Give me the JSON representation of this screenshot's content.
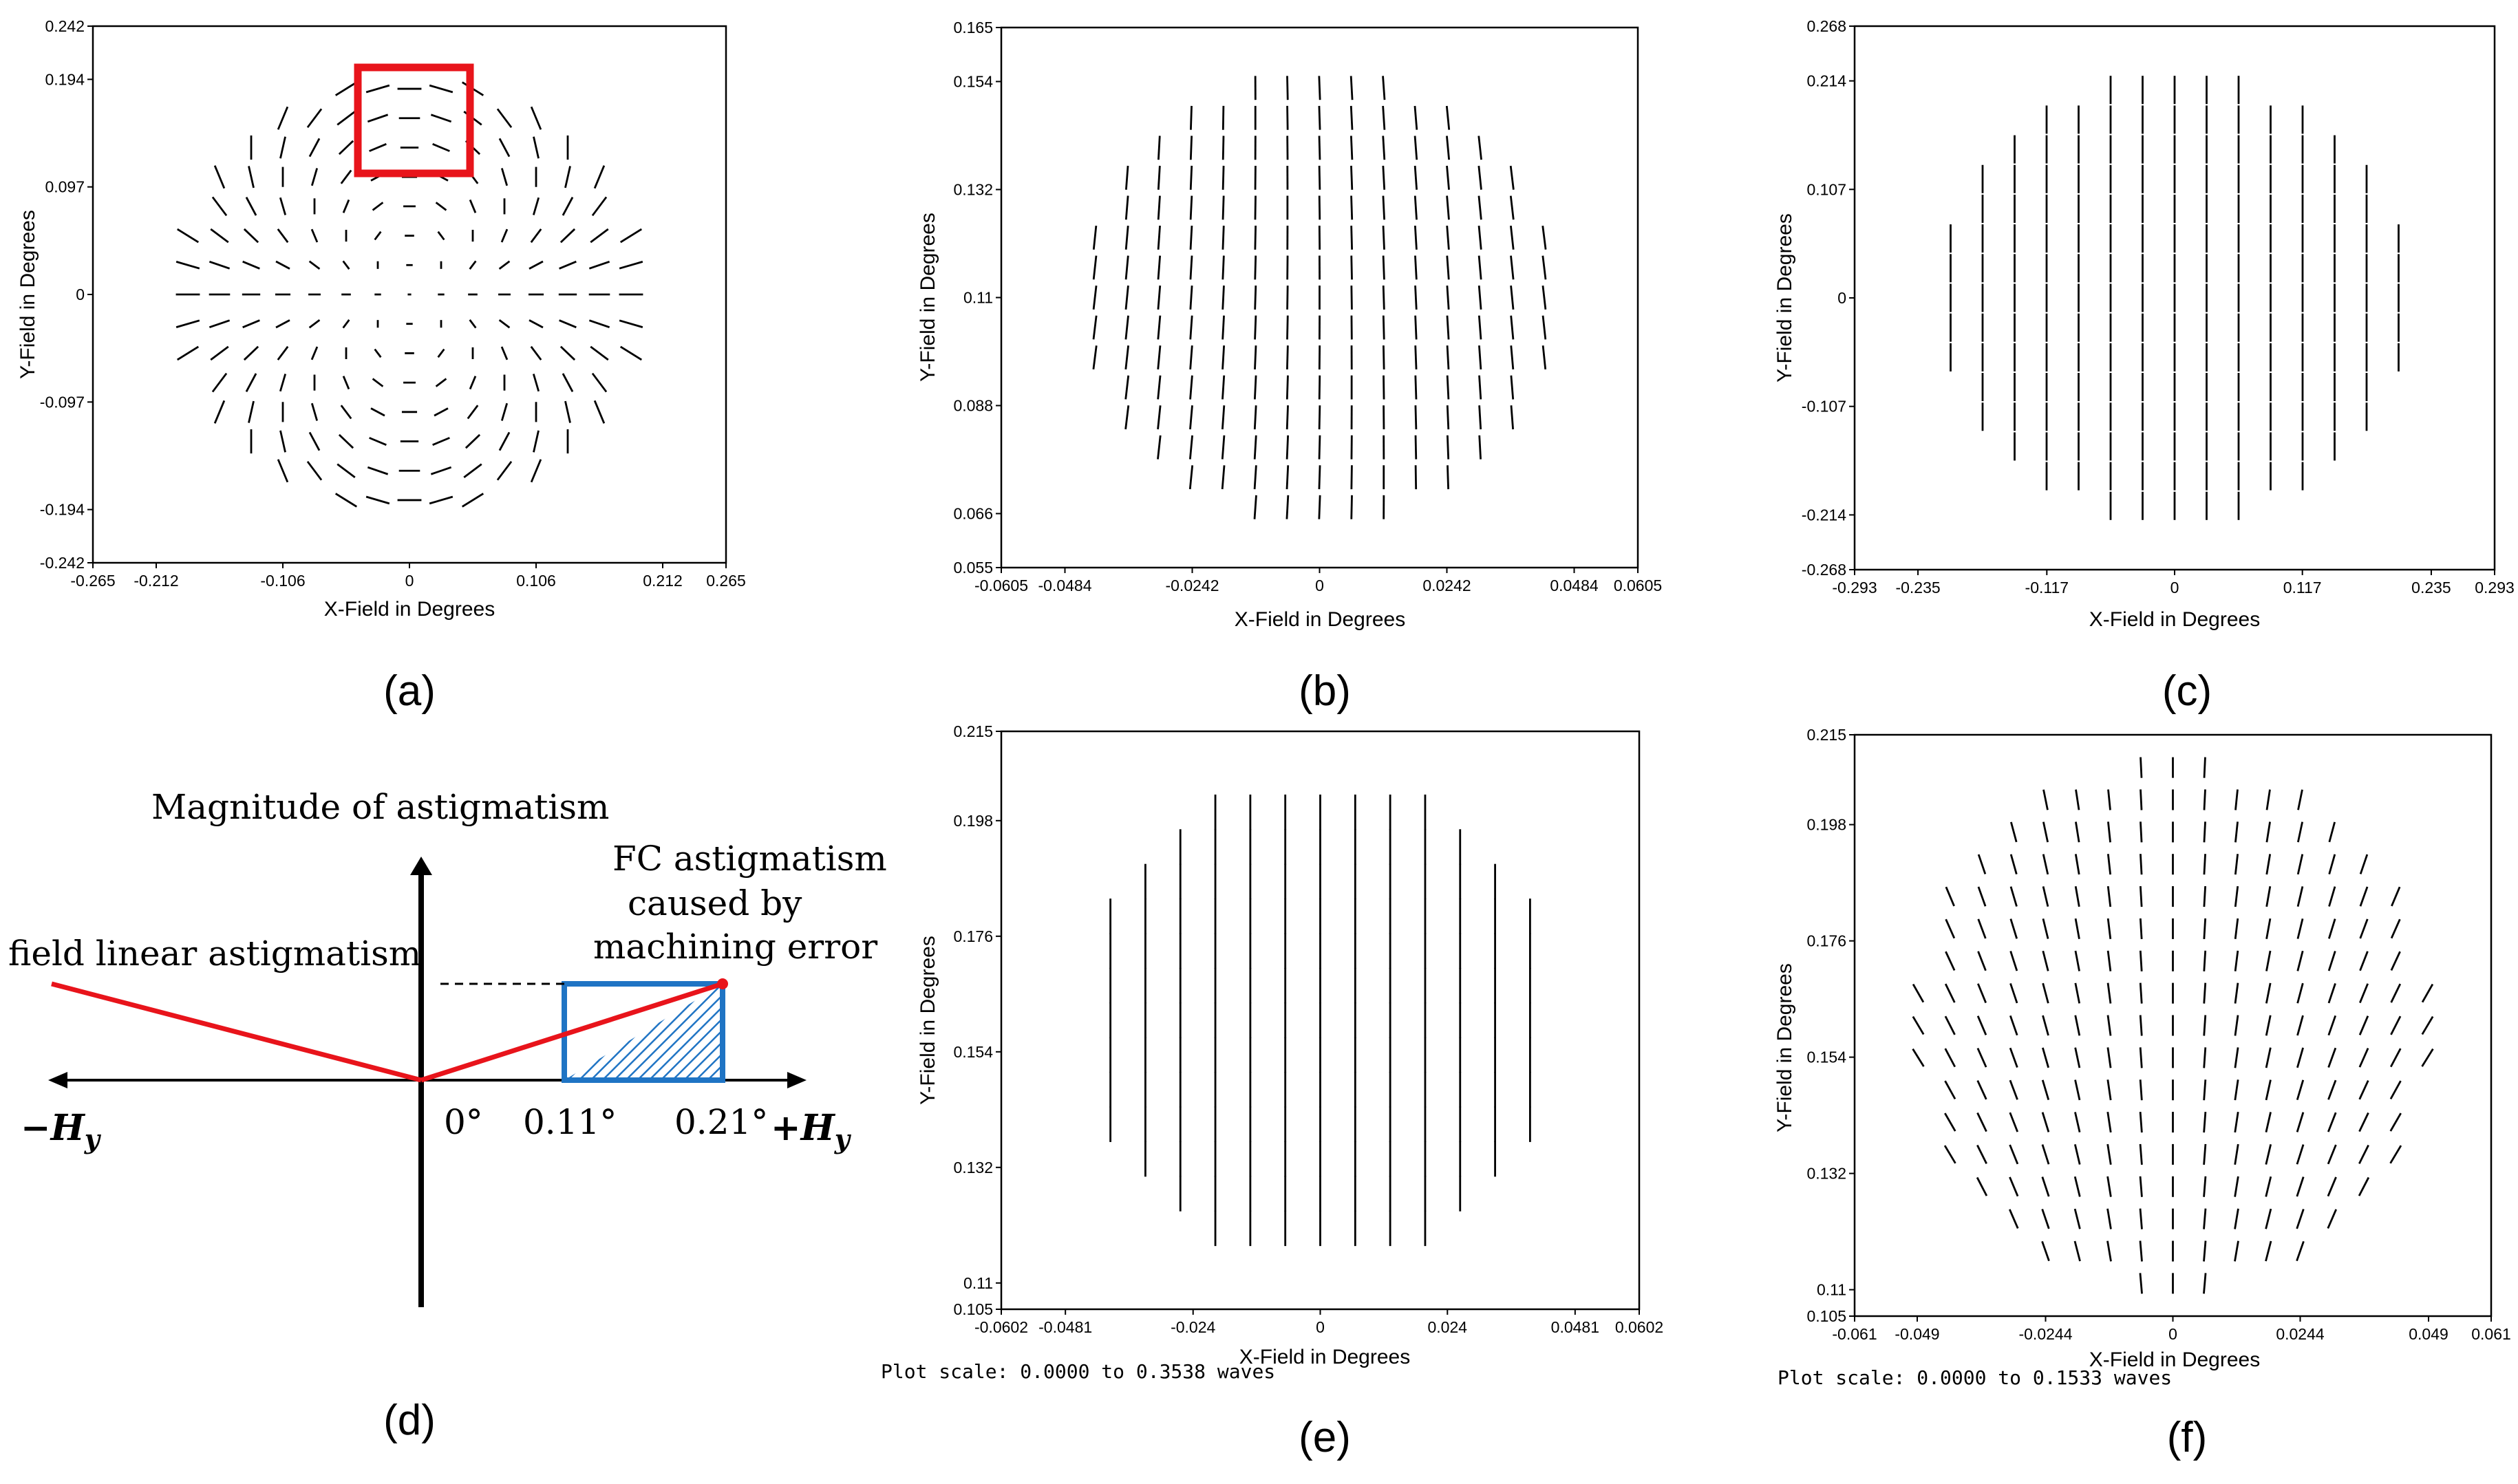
{
  "chart_data": [
    {
      "id": "a",
      "type": "scatter",
      "subtype": "field-map-line-segments",
      "panel_label": "(a)",
      "xlabel": "X-Field in Degrees",
      "ylabel": "Y-Field in Degrees",
      "xlim": [
        -0.265,
        0.265
      ],
      "ylim": [
        -0.242,
        0.242
      ],
      "xticks": [
        "-0.265",
        "-0.212",
        "-0.106",
        "0",
        "0.106",
        "0.212",
        "0.265"
      ],
      "xtick_values": [
        -0.265,
        -0.212,
        -0.106,
        0,
        0.106,
        0.212,
        0.265
      ],
      "yticks": [
        "0.242",
        "0.194",
        "0.097",
        "0",
        "-0.097",
        "-0.194",
        "-0.242"
      ],
      "ytick_values": [
        0.242,
        0.194,
        0.097,
        0,
        -0.097,
        -0.194,
        -0.242
      ],
      "grid_step": 0.0265,
      "field_radius": 0.2,
      "pattern": "radial-astigmatism",
      "highlight_box": {
        "x_range": [
          -0.053,
          0.053
        ],
        "y_range": [
          0.1,
          0.2
        ],
        "color": "#e8141b"
      },
      "plot_scale": ""
    },
    {
      "id": "b",
      "type": "scatter",
      "subtype": "field-map-line-segments",
      "panel_label": "(b)",
      "xlabel": "X-Field in Degrees",
      "ylabel": "Y-Field in Degrees",
      "xlim": [
        -0.0605,
        0.0605
      ],
      "ylim": [
        0.055,
        0.165
      ],
      "xticks": [
        "-0.0605",
        "-0.0484",
        "-0.0242",
        "0",
        "0.0242",
        "0.0484",
        "0.0605"
      ],
      "xtick_values": [
        -0.0605,
        -0.0484,
        -0.0242,
        0,
        0.0242,
        0.0484,
        0.0605
      ],
      "yticks": [
        "0.165",
        "0.154",
        "0.132",
        "0.11",
        "0.088",
        "0.066",
        "0.055"
      ],
      "ytick_values": [
        0.165,
        0.154,
        0.132,
        0.11,
        0.088,
        0.066,
        0.055
      ],
      "grid_step": 0.0061,
      "field_radius": 0.045,
      "pattern": "near-vertical",
      "plot_scale": ""
    },
    {
      "id": "c",
      "type": "scatter",
      "subtype": "field-map-line-segments",
      "panel_label": "(c)",
      "xlabel": "X-Field in Degrees",
      "ylabel": "Y-Field in Degrees",
      "xlim": [
        -0.293,
        0.293
      ],
      "ylim": [
        -0.268,
        0.268
      ],
      "xticks": [
        "-0.293",
        "-0.235",
        "-0.117",
        "0",
        "0.117",
        "0.235",
        "0.293"
      ],
      "xtick_values": [
        -0.293,
        -0.235,
        -0.117,
        0,
        0.117,
        0.235,
        0.293
      ],
      "yticks": [
        "0.268",
        "0.214",
        "0.107",
        "0",
        "-0.107",
        "-0.214",
        "-0.268"
      ],
      "ytick_values": [
        0.268,
        0.214,
        0.107,
        0,
        -0.107,
        -0.214,
        -0.268
      ],
      "grid_step": 0.0293,
      "field_radius": 0.22,
      "pattern": "vertical",
      "plot_scale": ""
    },
    {
      "id": "e",
      "type": "scatter",
      "subtype": "field-map-line-segments",
      "panel_label": "(e)",
      "xlabel": "X-Field in Degrees",
      "ylabel": "Y-Field in Degrees",
      "xlim": [
        -0.0602,
        0.0602
      ],
      "ylim": [
        0.105,
        0.215
      ],
      "xticks": [
        "-0.0602",
        "-0.0481",
        "-0.024",
        "0",
        "0.024",
        "0.0481",
        "0.0602"
      ],
      "xtick_values": [
        -0.0602,
        -0.0481,
        -0.024,
        0,
        0.024,
        0.0481,
        0.0602
      ],
      "yticks": [
        "0.215",
        "0.198",
        "0.176",
        "0.154",
        "0.132",
        "0.11",
        "0.105"
      ],
      "ytick_values": [
        0.215,
        0.198,
        0.176,
        0.154,
        0.132,
        0.11,
        0.105
      ],
      "grid_step": 0.0066,
      "field_radius": 0.046,
      "pattern": "vertical-long",
      "plot_scale": "Plot scale: 0.0000 to 0.3538 waves"
    },
    {
      "id": "f",
      "type": "scatter",
      "subtype": "field-map-line-segments",
      "panel_label": "(f)",
      "xlabel": "X-Field in Degrees",
      "ylabel": "Y-Field in Degrees",
      "xlim": [
        -0.061,
        0.061
      ],
      "ylim": [
        0.105,
        0.215
      ],
      "xticks": [
        "-0.061",
        "-0.049",
        "-0.0244",
        "0",
        "0.0244",
        "0.049",
        "0.061"
      ],
      "xtick_values": [
        -0.061,
        -0.049,
        -0.0244,
        0,
        0.0244,
        0.049,
        0.061
      ],
      "yticks": [
        "0.215",
        "0.198",
        "0.176",
        "0.154",
        "0.132",
        "0.11",
        "0.105"
      ],
      "ytick_values": [
        0.215,
        0.198,
        0.176,
        0.154,
        0.132,
        0.11,
        0.105
      ],
      "grid_step": 0.0061,
      "field_radius": 0.05,
      "pattern": "tilted-fan",
      "plot_scale": "Plot scale: 0.0000 to 0.1533 waves"
    }
  ],
  "diagram_d": {
    "panel_label": "(d)",
    "y_axis_label": "Magnitude of astigmatism",
    "left_line_label": "field linear astigmatism",
    "box_label_lines": [
      "FC astigmatism",
      "caused by",
      "machining error"
    ],
    "x_neg_label": "−H",
    "x_pos_label": "+H",
    "subscript": "y",
    "ticks": [
      "0°",
      "0.11°",
      "0.21°"
    ],
    "colors": {
      "line": "#e8141b",
      "box": "#1f74c4",
      "hatch": "#1f74c4"
    }
  }
}
